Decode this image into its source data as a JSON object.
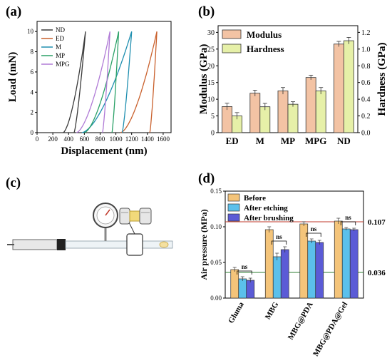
{
  "panel_labels": {
    "a": "(a)",
    "b": "(b)",
    "c": "(c)",
    "d": "(d)"
  },
  "chart_data": [
    {
      "panel": "a",
      "type": "line",
      "xlabel": "Displacement (nm)",
      "ylabel": "Load (mN)",
      "xlim": [
        0,
        1700
      ],
      "ylim": [
        0,
        11
      ],
      "xticks": [
        0,
        200,
        400,
        600,
        800,
        1000,
        1200,
        1400,
        1600
      ],
      "yticks": [
        0,
        2,
        4,
        6,
        8,
        10
      ],
      "grid": false,
      "legend": "top-left",
      "series": [
        {
          "name": "ND",
          "color": "#3a3a3a",
          "start": 330,
          "peak": 615,
          "end": 470
        },
        {
          "name": "ED",
          "color": "#c9602c",
          "start": 1060,
          "peak": 1520,
          "end": 1430
        },
        {
          "name": "M",
          "color": "#1f8fb0",
          "start": 570,
          "peak": 1200,
          "end": 1080
        },
        {
          "name": "MP",
          "color": "#2aa167",
          "start": 600,
          "peak": 1035,
          "end": 950
        },
        {
          "name": "MPG",
          "color": "#b07ad6",
          "start": 500,
          "peak": 925,
          "end": 830
        }
      ]
    },
    {
      "panel": "b",
      "type": "bar",
      "categories": [
        "ED",
        "M",
        "MP",
        "MPG",
        "ND"
      ],
      "xlabel": "",
      "ylabel": "Modulus (GPa)",
      "ylabel_right": "Hardness (GPa)",
      "ylim": [
        0,
        32
      ],
      "ylim_right": [
        0,
        1.28
      ],
      "yticks": [
        0,
        5,
        10,
        15,
        20,
        25,
        30
      ],
      "yticks_right": [
        0.0,
        0.2,
        0.4,
        0.6,
        0.8,
        1.0,
        1.2
      ],
      "legend": "top-left",
      "series": [
        {
          "name": "Modulus",
          "axis": "left",
          "color": "#f3c3a4",
          "values": [
            7.8,
            11.8,
            12.5,
            16.5,
            26.5
          ],
          "errors": [
            1.0,
            0.9,
            1.0,
            0.7,
            0.8
          ]
        },
        {
          "name": "Hardness",
          "axis": "right",
          "color": "#e6f0a8",
          "values": [
            0.2,
            0.31,
            0.34,
            0.5,
            1.1
          ],
          "errors": [
            0.04,
            0.04,
            0.03,
            0.04,
            0.04
          ]
        }
      ]
    },
    {
      "panel": "d",
      "type": "bar",
      "categories": [
        "Gluma",
        "MBG",
        "MBG@PDA",
        "MBG@PDA@Gel"
      ],
      "xlabel": "",
      "ylabel": "Air pressure (MPa)",
      "ylim": [
        0,
        0.15
      ],
      "yticks": [
        0.0,
        0.05,
        0.1,
        0.15
      ],
      "legend": "top-left",
      "reference_lines": [
        {
          "value": 0.107,
          "label": "0.107",
          "color": "#c0392b"
        },
        {
          "value": 0.036,
          "label": "0.036",
          "color": "#2e7d32"
        }
      ],
      "significance": [
        "ns",
        "ns",
        "ns",
        "ns"
      ],
      "series": [
        {
          "name": "Before",
          "color": "#f4c47a",
          "values": [
            0.04,
            0.096,
            0.104,
            0.108
          ],
          "errors": [
            0.003,
            0.004,
            0.003,
            0.004
          ]
        },
        {
          "name": "After etching",
          "color": "#5bc0eb",
          "values": [
            0.027,
            0.058,
            0.08,
            0.097
          ],
          "errors": [
            0.003,
            0.005,
            0.003,
            0.002
          ]
        },
        {
          "name": "After brushing",
          "color": "#5b5bd6",
          "values": [
            0.025,
            0.068,
            0.078,
            0.096
          ],
          "errors": [
            0.003,
            0.004,
            0.003,
            0.002
          ]
        }
      ]
    }
  ]
}
